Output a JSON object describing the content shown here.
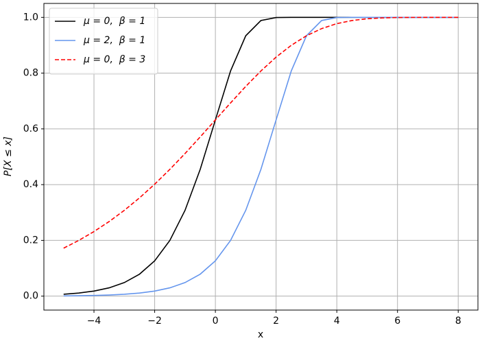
{
  "chart_data": {
    "type": "line",
    "xlabel": "x",
    "ylabel": "P[X ≤ x]",
    "x": [
      -5,
      -4.5,
      -4,
      -3.5,
      -3,
      -2.5,
      -2,
      -1.5,
      -1,
      -0.5,
      0,
      0.5,
      1,
      1.5,
      2,
      2.5,
      3,
      3.5,
      4,
      4.5,
      5,
      5.5,
      6,
      6.5,
      7,
      7.5,
      8
    ],
    "series": [
      {
        "name": "μ = 0,  β = 1",
        "color": "#000000",
        "linestyle": "solid",
        "values": [
          0.00672,
          0.01105,
          0.01815,
          0.02975,
          0.04857,
          0.0788,
          0.1266,
          0.1999,
          0.3078,
          0.4548,
          0.6321,
          0.8077,
          0.934,
          0.9887,
          0.99938,
          0.999995,
          1,
          1,
          1,
          1,
          1,
          1,
          1,
          1,
          1,
          1,
          1
        ]
      },
      {
        "name": "μ = 2,  β = 1",
        "color": "#6495ed",
        "linestyle": "solid",
        "values": [
          0.00091,
          0.0015,
          0.00248,
          0.00408,
          0.00672,
          0.01105,
          0.01815,
          0.02975,
          0.04857,
          0.0788,
          0.1266,
          0.1999,
          0.3078,
          0.4548,
          0.6321,
          0.8077,
          0.934,
          0.9887,
          0.9994,
          1,
          1,
          1,
          1,
          1,
          1,
          1,
          1
        ]
      },
      {
        "name": "μ = 0,  β = 3",
        "color": "#ff0000",
        "linestyle": "dashed",
        "values": [
          0.1721,
          0.1999,
          0.2317,
          0.2676,
          0.3078,
          0.3525,
          0.4016,
          0.4548,
          0.5116,
          0.5711,
          0.6321,
          0.6931,
          0.7523,
          0.8077,
          0.8574,
          0.8998,
          0.934,
          0.9597,
          0.9775,
          0.9887,
          0.995,
          0.9981,
          0.9994,
          0.99984,
          0.99997,
          0.999995,
          1
        ]
      }
    ],
    "xlim": [
      -5.65,
      8.65
    ],
    "ylim": [
      -0.05,
      1.05
    ],
    "xticks": [
      {
        "value": -4,
        "label": "−4"
      },
      {
        "value": -2,
        "label": "−2"
      },
      0,
      2,
      4,
      6,
      8
    ],
    "yticks": [
      {
        "value": 0,
        "label": "0.0"
      },
      0.2,
      0.4,
      0.6,
      0.8,
      {
        "value": 1,
        "label": "1.0"
      }
    ],
    "grid": true,
    "legend": "upper left"
  }
}
